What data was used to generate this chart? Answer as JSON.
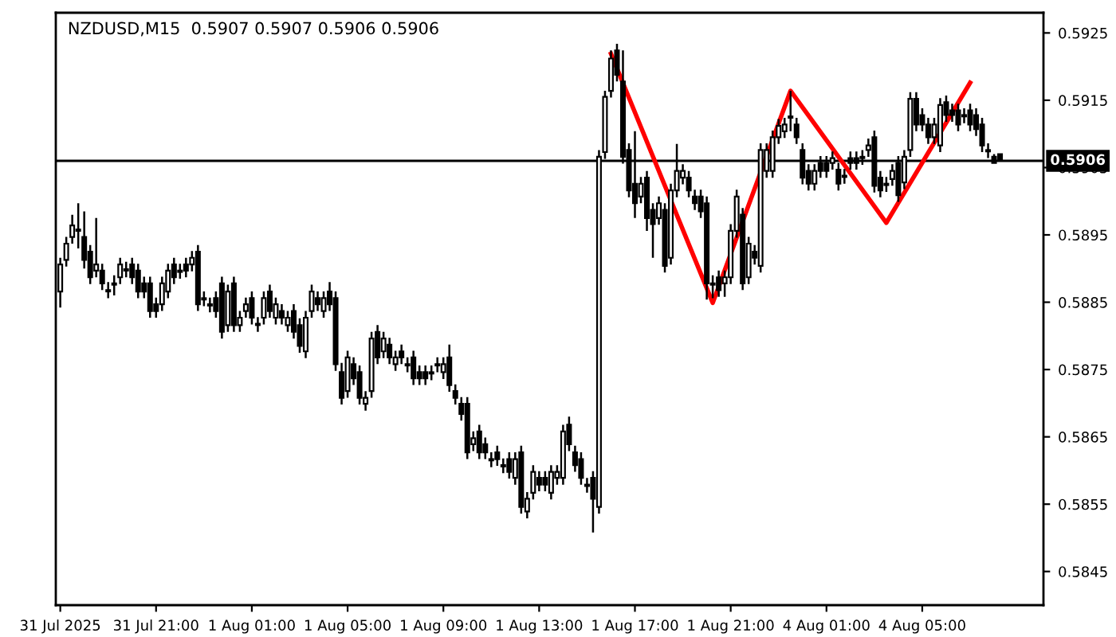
{
  "chart_data": {
    "type": "candlestick",
    "title": "NZDUSD,M15  0.5907 0.5907 0.5906 0.5906",
    "color": "#000000",
    "grid": false,
    "categories": [
      "31 Jul 2025",
      null,
      null,
      null,
      null,
      null,
      null,
      null,
      null,
      null,
      null,
      null,
      null,
      null,
      null,
      null,
      "31 Jul 21:00",
      null,
      null,
      null,
      null,
      null,
      null,
      null,
      null,
      null,
      null,
      null,
      null,
      null,
      null,
      null,
      "1 Aug 01:00",
      null,
      null,
      null,
      null,
      null,
      null,
      null,
      null,
      null,
      null,
      null,
      null,
      null,
      null,
      null,
      "1 Aug 05:00",
      null,
      null,
      null,
      null,
      null,
      null,
      null,
      null,
      null,
      null,
      null,
      null,
      null,
      null,
      null,
      "1 Aug 09:00",
      null,
      null,
      null,
      null,
      null,
      null,
      null,
      null,
      null,
      null,
      null,
      null,
      null,
      null,
      null,
      "1 Aug 13:00",
      null,
      null,
      null,
      null,
      null,
      null,
      null,
      null,
      null,
      null,
      null,
      null,
      null,
      null,
      null,
      "1 Aug 17:00",
      null,
      null,
      null,
      null,
      null,
      null,
      null,
      null,
      null,
      null,
      null,
      null,
      null,
      null,
      null,
      "1 Aug 21:00",
      null,
      null,
      null,
      null,
      null,
      null,
      null,
      null,
      null,
      null,
      null,
      null,
      null,
      null,
      null,
      "4 Aug 01:00",
      null,
      null,
      null,
      null,
      null,
      null,
      null,
      null,
      null,
      null,
      null,
      null,
      null,
      null,
      null,
      "4 Aug 05:00",
      null,
      null,
      null,
      null,
      null,
      null,
      null,
      null,
      null,
      null,
      null,
      null,
      null
    ],
    "ohlc": [
      [
        0.58866,
        0.58916,
        0.58842,
        0.58906
      ],
      [
        0.58913,
        0.58947,
        0.58903,
        0.58937
      ],
      [
        0.58947,
        0.5898,
        0.58937,
        0.58964
      ],
      [
        0.58956,
        0.58997,
        0.5893,
        0.58958
      ],
      [
        0.58947,
        0.58985,
        0.589,
        0.58913
      ],
      [
        0.58925,
        0.58935,
        0.58877,
        0.58887
      ],
      [
        0.58897,
        0.58975,
        0.58887,
        0.58906
      ],
      [
        0.58897,
        0.58907,
        0.58868,
        0.58878
      ],
      [
        0.58868,
        0.5888,
        0.58856,
        0.58866
      ],
      [
        0.58876,
        0.5889,
        0.5886,
        0.58878
      ],
      [
        0.58887,
        0.58916,
        0.58877,
        0.58906
      ],
      [
        0.58897,
        0.5891,
        0.58887,
        0.58899
      ],
      [
        0.58906,
        0.58916,
        0.58877,
        0.58887
      ],
      [
        0.58897,
        0.58907,
        0.58856,
        0.58866
      ],
      [
        0.58878,
        0.58888,
        0.58856,
        0.58866
      ],
      [
        0.58878,
        0.58888,
        0.58827,
        0.58837
      ],
      [
        0.58847,
        0.58857,
        0.58827,
        0.58837
      ],
      [
        0.58847,
        0.58888,
        0.58837,
        0.58878
      ],
      [
        0.58866,
        0.58907,
        0.58856,
        0.58897
      ],
      [
        0.58906,
        0.58916,
        0.58877,
        0.58887
      ],
      [
        0.58897,
        0.58907,
        0.58885,
        0.58895
      ],
      [
        0.58906,
        0.58916,
        0.58887,
        0.58897
      ],
      [
        0.58906,
        0.58926,
        0.58896,
        0.58916
      ],
      [
        0.58925,
        0.58935,
        0.58837,
        0.58847
      ],
      [
        0.58856,
        0.58866,
        0.58844,
        0.58854
      ],
      [
        0.58847,
        0.58857,
        0.58835,
        0.58845
      ],
      [
        0.58856,
        0.58866,
        0.58827,
        0.58837
      ],
      [
        0.58878,
        0.58888,
        0.58796,
        0.58806
      ],
      [
        0.58816,
        0.58876,
        0.58806,
        0.58866
      ],
      [
        0.58878,
        0.58888,
        0.58806,
        0.58816
      ],
      [
        0.58816,
        0.58837,
        0.58806,
        0.58827
      ],
      [
        0.58837,
        0.58857,
        0.58827,
        0.58847
      ],
      [
        0.58856,
        0.58866,
        0.58817,
        0.58827
      ],
      [
        0.58816,
        0.58828,
        0.58806,
        0.58818
      ],
      [
        0.58827,
        0.58866,
        0.58817,
        0.58856
      ],
      [
        0.58866,
        0.58876,
        0.58827,
        0.58837
      ],
      [
        0.58827,
        0.58857,
        0.58817,
        0.58847
      ],
      [
        0.58837,
        0.58847,
        0.58817,
        0.58827
      ],
      [
        0.58816,
        0.58837,
        0.58806,
        0.58827
      ],
      [
        0.58837,
        0.58847,
        0.58796,
        0.58806
      ],
      [
        0.58816,
        0.58826,
        0.58775,
        0.58785
      ],
      [
        0.58777,
        0.58837,
        0.58767,
        0.58827
      ],
      [
        0.58837,
        0.58876,
        0.58827,
        0.58866
      ],
      [
        0.58856,
        0.58866,
        0.58837,
        0.58847
      ],
      [
        0.58837,
        0.58866,
        0.58827,
        0.58856
      ],
      [
        0.58866,
        0.5888,
        0.58837,
        0.58847
      ],
      [
        0.58856,
        0.58866,
        0.58748,
        0.58758
      ],
      [
        0.58746,
        0.5876,
        0.58698,
        0.58708
      ],
      [
        0.58718,
        0.58778,
        0.58708,
        0.58768
      ],
      [
        0.58758,
        0.58768,
        0.58727,
        0.58737
      ],
      [
        0.58746,
        0.58756,
        0.58698,
        0.58708
      ],
      [
        0.58699,
        0.58718,
        0.58689,
        0.58708
      ],
      [
        0.58718,
        0.58806,
        0.58708,
        0.58796
      ],
      [
        0.58806,
        0.58816,
        0.58758,
        0.58768
      ],
      [
        0.58777,
        0.58806,
        0.58767,
        0.58796
      ],
      [
        0.58787,
        0.58797,
        0.58758,
        0.58768
      ],
      [
        0.58758,
        0.58778,
        0.58748,
        0.58768
      ],
      [
        0.58777,
        0.58787,
        0.58758,
        0.58768
      ],
      [
        0.58758,
        0.58768,
        0.58746,
        0.58756
      ],
      [
        0.58768,
        0.58778,
        0.58727,
        0.58737
      ],
      [
        0.58746,
        0.58756,
        0.58727,
        0.58737
      ],
      [
        0.58746,
        0.58756,
        0.58727,
        0.58737
      ],
      [
        0.58746,
        0.58756,
        0.58734,
        0.58744
      ],
      [
        0.58758,
        0.58768,
        0.58746,
        0.58756
      ],
      [
        0.58746,
        0.58768,
        0.58736,
        0.58758
      ],
      [
        0.58768,
        0.58787,
        0.58717,
        0.58727
      ],
      [
        0.58718,
        0.58728,
        0.58698,
        0.58708
      ],
      [
        0.58699,
        0.58709,
        0.58674,
        0.58684
      ],
      [
        0.58699,
        0.58709,
        0.58617,
        0.58627
      ],
      [
        0.58639,
        0.58658,
        0.58629,
        0.58648
      ],
      [
        0.58658,
        0.58668,
        0.58617,
        0.58627
      ],
      [
        0.58639,
        0.58649,
        0.58617,
        0.58627
      ],
      [
        0.58617,
        0.58627,
        0.58605,
        0.58615
      ],
      [
        0.58627,
        0.58637,
        0.58607,
        0.58617
      ],
      [
        0.58608,
        0.58618,
        0.58596,
        0.58606
      ],
      [
        0.58617,
        0.58627,
        0.58588,
        0.58598
      ],
      [
        0.58589,
        0.58627,
        0.58579,
        0.58617
      ],
      [
        0.58627,
        0.58637,
        0.58536,
        0.58546
      ],
      [
        0.58539,
        0.58568,
        0.58529,
        0.58558
      ],
      [
        0.58567,
        0.58608,
        0.58557,
        0.58598
      ],
      [
        0.58589,
        0.58599,
        0.58569,
        0.58579
      ],
      [
        0.58589,
        0.58599,
        0.58569,
        0.58579
      ],
      [
        0.58567,
        0.58608,
        0.58557,
        0.58598
      ],
      [
        0.58589,
        0.58608,
        0.58579,
        0.58598
      ],
      [
        0.58589,
        0.58668,
        0.58579,
        0.58658
      ],
      [
        0.58668,
        0.5868,
        0.58629,
        0.58639
      ],
      [
        0.58627,
        0.58637,
        0.58598,
        0.58608
      ],
      [
        0.58617,
        0.58627,
        0.58579,
        0.58589
      ],
      [
        0.58579,
        0.58589,
        0.58567,
        0.58577
      ],
      [
        0.58589,
        0.58599,
        0.58508,
        0.58558
      ],
      [
        0.58546,
        0.59076,
        0.58536,
        0.59066
      ],
      [
        0.59073,
        0.59164,
        0.59063,
        0.59155
      ],
      [
        0.59164,
        0.59224,
        0.59154,
        0.59212
      ],
      [
        0.59224,
        0.59234,
        0.59178,
        0.59188
      ],
      [
        0.59178,
        0.59224,
        0.59056,
        0.59066
      ],
      [
        0.59076,
        0.59086,
        0.59006,
        0.59016
      ],
      [
        0.59026,
        0.59104,
        0.58975,
        0.58997
      ],
      [
        0.59007,
        0.59036,
        0.58997,
        0.59026
      ],
      [
        0.59035,
        0.59045,
        0.58956,
        0.58975
      ],
      [
        0.58987,
        0.58997,
        0.58916,
        0.58966
      ],
      [
        0.58975,
        0.59007,
        0.58965,
        0.58997
      ],
      [
        0.58987,
        0.58997,
        0.58894,
        0.58904
      ],
      [
        0.58916,
        0.59026,
        0.58906,
        0.59016
      ],
      [
        0.59016,
        0.59085,
        0.59006,
        0.59045
      ],
      [
        0.59035,
        0.59055,
        0.59025,
        0.59045
      ],
      [
        0.59035,
        0.59045,
        0.59006,
        0.59016
      ],
      [
        0.59007,
        0.59017,
        0.58987,
        0.58997
      ],
      [
        0.59007,
        0.59017,
        0.58975,
        0.58985
      ],
      [
        0.58997,
        0.59007,
        0.58854,
        0.58878
      ],
      [
        0.58878,
        0.5889,
        0.58856,
        0.58876
      ],
      [
        0.58887,
        0.58897,
        0.58858,
        0.58868
      ],
      [
        0.58878,
        0.58897,
        0.58858,
        0.58887
      ],
      [
        0.58887,
        0.58966,
        0.58877,
        0.58956
      ],
      [
        0.58956,
        0.59017,
        0.58946,
        0.59007
      ],
      [
        0.5898,
        0.5899,
        0.58868,
        0.58878
      ],
      [
        0.58887,
        0.58947,
        0.58877,
        0.58937
      ],
      [
        0.58925,
        0.58935,
        0.58906,
        0.58916
      ],
      [
        0.58904,
        0.59086,
        0.58894,
        0.59076
      ],
      [
        0.59045,
        0.59086,
        0.59035,
        0.59076
      ],
      [
        0.59045,
        0.59105,
        0.59035,
        0.59095
      ],
      [
        0.59095,
        0.59122,
        0.59085,
        0.59112
      ],
      [
        0.59104,
        0.59124,
        0.59094,
        0.59114
      ],
      [
        0.59126,
        0.59164,
        0.59104,
        0.59124
      ],
      [
        0.59114,
        0.59124,
        0.59085,
        0.59095
      ],
      [
        0.59076,
        0.59086,
        0.59025,
        0.59035
      ],
      [
        0.59045,
        0.59055,
        0.59016,
        0.59026
      ],
      [
        0.59026,
        0.59055,
        0.59016,
        0.59045
      ],
      [
        0.59057,
        0.59067,
        0.59035,
        0.59045
      ],
      [
        0.59057,
        0.59067,
        0.59035,
        0.59045
      ],
      [
        0.59057,
        0.59074,
        0.59047,
        0.59064
      ],
      [
        0.59047,
        0.59057,
        0.59016,
        0.59026
      ],
      [
        0.59038,
        0.59048,
        0.59026,
        0.59036
      ],
      [
        0.59064,
        0.59074,
        0.59047,
        0.59057
      ],
      [
        0.59064,
        0.59074,
        0.59047,
        0.59057
      ],
      [
        0.59066,
        0.59076,
        0.59054,
        0.59064
      ],
      [
        0.59076,
        0.59093,
        0.59066,
        0.59083
      ],
      [
        0.59095,
        0.59105,
        0.59013,
        0.59023
      ],
      [
        0.59035,
        0.59045,
        0.59006,
        0.59016
      ],
      [
        0.59026,
        0.59036,
        0.59014,
        0.59024
      ],
      [
        0.59033,
        0.59055,
        0.59023,
        0.59045
      ],
      [
        0.59057,
        0.59067,
        0.58999,
        0.59009
      ],
      [
        0.59028,
        0.59076,
        0.59018,
        0.59066
      ],
      [
        0.59076,
        0.59162,
        0.59066,
        0.59152
      ],
      [
        0.59152,
        0.59162,
        0.59104,
        0.59114
      ],
      [
        0.59128,
        0.59138,
        0.59104,
        0.59114
      ],
      [
        0.59114,
        0.59124,
        0.59085,
        0.59095
      ],
      [
        0.59095,
        0.59124,
        0.59085,
        0.59114
      ],
      [
        0.59083,
        0.59153,
        0.59073,
        0.59143
      ],
      [
        0.59147,
        0.59157,
        0.59118,
        0.59128
      ],
      [
        0.59135,
        0.59145,
        0.59118,
        0.59128
      ],
      [
        0.59135,
        0.59145,
        0.59104,
        0.59114
      ],
      [
        0.59128,
        0.59138,
        0.59116,
        0.59126
      ],
      [
        0.59135,
        0.59145,
        0.59104,
        0.59114
      ],
      [
        0.59128,
        0.59138,
        0.59097,
        0.59107
      ],
      [
        0.59114,
        0.59124,
        0.59073,
        0.59083
      ],
      [
        0.59076,
        0.59086,
        0.59064,
        0.59074
      ],
      [
        0.59066,
        0.5907,
        0.59057,
        0.59057
      ],
      [
        0.5907,
        0.5907,
        0.5906,
        0.5906
      ]
    ],
    "series": [
      {
        "type": "line",
        "color": "#ff0000",
        "values": [
          null,
          null,
          null,
          null,
          null,
          null,
          null,
          null,
          null,
          null,
          null,
          null,
          null,
          null,
          null,
          null,
          null,
          null,
          null,
          null,
          null,
          null,
          null,
          null,
          null,
          null,
          null,
          null,
          null,
          null,
          null,
          null,
          null,
          null,
          null,
          null,
          null,
          null,
          null,
          null,
          null,
          null,
          null,
          null,
          null,
          null,
          null,
          null,
          null,
          null,
          null,
          null,
          null,
          null,
          null,
          null,
          null,
          null,
          null,
          null,
          null,
          null,
          null,
          null,
          null,
          null,
          null,
          null,
          null,
          null,
          null,
          null,
          null,
          null,
          null,
          null,
          null,
          null,
          null,
          null,
          null,
          null,
          null,
          null,
          null,
          null,
          null,
          null,
          null,
          null,
          null,
          null,
          0.59219,
          null,
          null,
          null,
          null,
          null,
          null,
          null,
          null,
          null,
          null,
          null,
          null,
          null,
          null,
          null,
          null,
          0.58849,
          null,
          null,
          null,
          null,
          null,
          null,
          null,
          null,
          null,
          null,
          null,
          null,
          0.59164,
          null,
          null,
          null,
          null,
          null,
          null,
          null,
          null,
          null,
          null,
          null,
          null,
          null,
          null,
          null,
          0.58968,
          null,
          null,
          null,
          null,
          null,
          null,
          null,
          null,
          null,
          null,
          null,
          null,
          null,
          0.59176,
          null,
          null,
          null,
          null,
          null
        ]
      }
    ],
    "ylim": [
      0.584,
      0.5928
    ],
    "yticks": [
      0.5845,
      0.5855,
      0.5865,
      0.5875,
      0.5885,
      0.5895,
      0.5905,
      0.5915,
      0.5925
    ],
    "ref_lines": [
      {
        "axis": "y",
        "value": 0.5906,
        "label": "0.5906",
        "color": "#000000"
      }
    ]
  }
}
